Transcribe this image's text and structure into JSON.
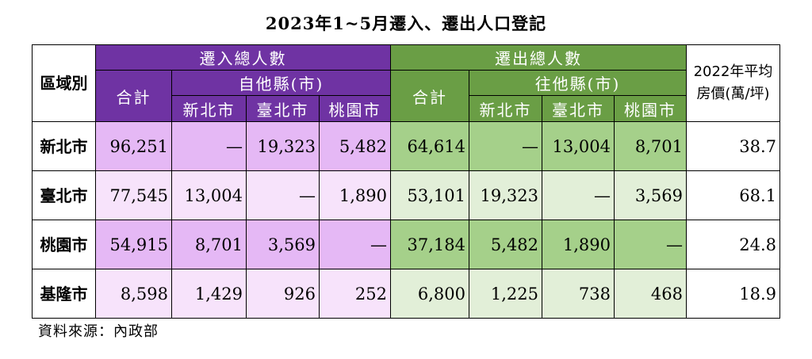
{
  "title": "2023年1~5月遷入、遷出人口登記",
  "headers": {
    "region": "區域別",
    "in_total_group": "遷入總人數",
    "out_total_group": "遷出總人數",
    "price": "2022年平均房價(萬/坪)",
    "total": "合計",
    "from_other": "自他縣(市)",
    "to_other": "往他縣(市)",
    "cities": [
      "新北市",
      "臺北市",
      "桃園市"
    ]
  },
  "rows": [
    {
      "region": "新北市",
      "in": [
        "96,251",
        "—",
        "19,323",
        "5,482"
      ],
      "out": [
        "64,614",
        "—",
        "13,004",
        "8,701"
      ],
      "price": "38.7"
    },
    {
      "region": "臺北市",
      "in": [
        "77,545",
        "13,004",
        "—",
        "1,890"
      ],
      "out": [
        "53,101",
        "19,323",
        "—",
        "3,569"
      ],
      "price": "68.1"
    },
    {
      "region": "桃園市",
      "in": [
        "54,915",
        "8,701",
        "3,569",
        "—"
      ],
      "out": [
        "37,184",
        "5,482",
        "1,890",
        "—"
      ],
      "price": "24.8"
    },
    {
      "region": "基隆市",
      "in": [
        "8,598",
        "1,429",
        "926",
        "252"
      ],
      "out": [
        "6,800",
        "1,225",
        "738",
        "468"
      ],
      "price": "18.9"
    }
  ],
  "source": "資料來源：內政部",
  "colors": {
    "in_header": "#6f33a3",
    "out_header": "#6a9e45",
    "in_dark": "#e5b8f5",
    "in_light": "#f7e3fb",
    "out_dark": "#a5d08a",
    "out_light": "#e2efd8"
  }
}
